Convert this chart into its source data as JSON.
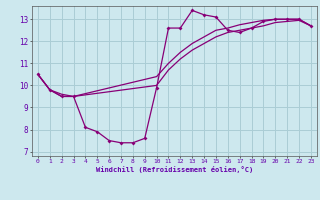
{
  "xlabel": "Windchill (Refroidissement éolien,°C)",
  "bg_color": "#cde8ee",
  "grid_color": "#aacdd5",
  "line_color": "#880077",
  "axis_color": "#6600aa",
  "xlim": [
    -0.5,
    23.5
  ],
  "ylim": [
    6.8,
    13.6
  ],
  "xticks": [
    0,
    1,
    2,
    3,
    4,
    5,
    6,
    7,
    8,
    9,
    10,
    11,
    12,
    13,
    14,
    15,
    16,
    17,
    18,
    19,
    20,
    21,
    22,
    23
  ],
  "yticks": [
    7,
    8,
    9,
    10,
    11,
    12,
    13
  ],
  "series1_x": [
    0,
    1,
    2,
    3,
    4,
    5,
    6,
    7,
    8,
    9,
    10,
    11,
    12,
    13,
    14,
    15,
    16,
    17,
    18,
    19,
    20,
    21,
    22,
    23
  ],
  "series1_y": [
    10.5,
    9.8,
    9.5,
    9.5,
    8.1,
    7.9,
    7.5,
    7.4,
    7.4,
    7.6,
    9.9,
    12.6,
    12.6,
    13.4,
    13.2,
    13.1,
    12.5,
    12.4,
    12.6,
    12.9,
    13.0,
    13.0,
    13.0,
    12.7
  ],
  "series2_x": [
    0,
    1,
    2,
    3,
    10,
    11,
    12,
    13,
    14,
    15,
    16,
    17,
    18,
    19,
    20,
    21,
    22,
    23
  ],
  "series2_y": [
    10.5,
    9.8,
    9.6,
    9.5,
    10.0,
    10.7,
    11.2,
    11.6,
    11.9,
    12.2,
    12.4,
    12.5,
    12.6,
    12.7,
    12.85,
    12.9,
    12.95,
    12.7
  ],
  "series3_x": [
    0,
    1,
    2,
    3,
    10,
    11,
    12,
    13,
    14,
    15,
    16,
    17,
    18,
    19,
    20,
    21,
    22,
    23
  ],
  "series3_y": [
    10.5,
    9.8,
    9.5,
    9.5,
    10.4,
    11.0,
    11.5,
    11.9,
    12.2,
    12.5,
    12.6,
    12.75,
    12.85,
    12.95,
    13.0,
    13.0,
    13.0,
    12.7
  ]
}
